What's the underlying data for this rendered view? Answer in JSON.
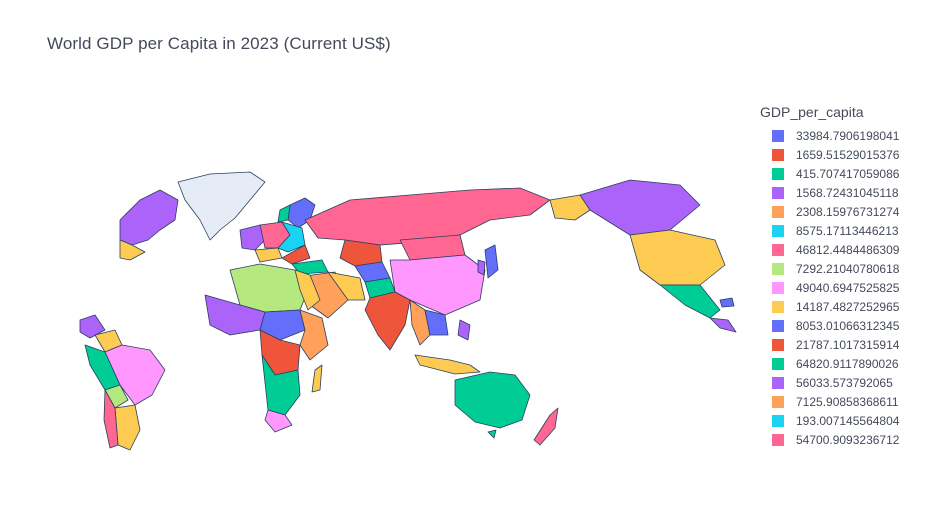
{
  "map": {
    "title": "World GDP per Capita in 2023 (Current US$)",
    "legend": {
      "title": "GDP_per_capita",
      "items": [
        {
          "label": "33984.7906198041",
          "color": "#636efa"
        },
        {
          "label": "1659.51529015376",
          "color": "#ef553b"
        },
        {
          "label": "415.707417059086",
          "color": "#00cc96"
        },
        {
          "label": "1568.72431045118",
          "color": "#ab63fa"
        },
        {
          "label": "2308.15976731274",
          "color": "#ffa15a"
        },
        {
          "label": "8575.17113446213",
          "color": "#19d3f3"
        },
        {
          "label": "46812.4484486309",
          "color": "#ff6692"
        },
        {
          "label": "7292.21040780618",
          "color": "#b6e880"
        },
        {
          "label": "49040.6947525825",
          "color": "#ff97ff"
        },
        {
          "label": "14187.4827252965",
          "color": "#fecb52"
        },
        {
          "label": "8053.01066312345",
          "color": "#636efa"
        },
        {
          "label": "21787.1017315914",
          "color": "#ef553b"
        },
        {
          "label": "64820.9117890026",
          "color": "#00cc96"
        },
        {
          "label": "56033.573792065",
          "color": "#ab63fa"
        },
        {
          "label": "7125.90858368611",
          "color": "#ffa15a"
        },
        {
          "label": "193.007145564804",
          "color": "#19d3f3"
        },
        {
          "label": "54700.9093236712",
          "color": "#ff6692"
        }
      ]
    }
  }
}
